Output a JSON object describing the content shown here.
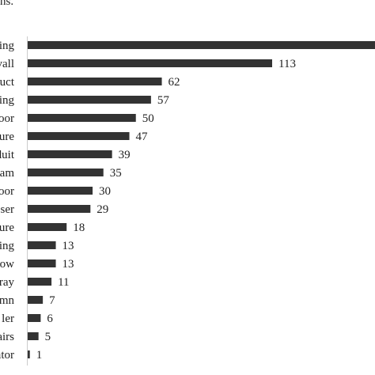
{
  "caption": "ns.",
  "chart_data": {
    "type": "bar",
    "orientation": "horizontal",
    "title": "",
    "xlabel": "",
    "ylabel": "",
    "categories": [
      "ing",
      "vall",
      "duct",
      "ing",
      "oor",
      "ure",
      "duit",
      "am",
      "oor",
      "eser",
      "ure",
      "ing",
      "ow",
      "ray",
      "mn",
      "ler",
      "airs",
      "ator"
    ],
    "values": [
      null,
      113,
      62,
      57,
      50,
      47,
      39,
      35,
      30,
      29,
      18,
      13,
      13,
      11,
      7,
      6,
      5,
      1
    ],
    "value_labels": [
      "",
      "113",
      "62",
      "57",
      "50",
      "47",
      "39",
      "35",
      "30",
      "29",
      "18",
      "13",
      "13",
      "11",
      "7",
      "6",
      "5",
      "1"
    ],
    "xlim": [
      0,
      130
    ],
    "bar_color": "#333333",
    "axis_color": "#cccccc",
    "grid": false,
    "legend": "none"
  }
}
